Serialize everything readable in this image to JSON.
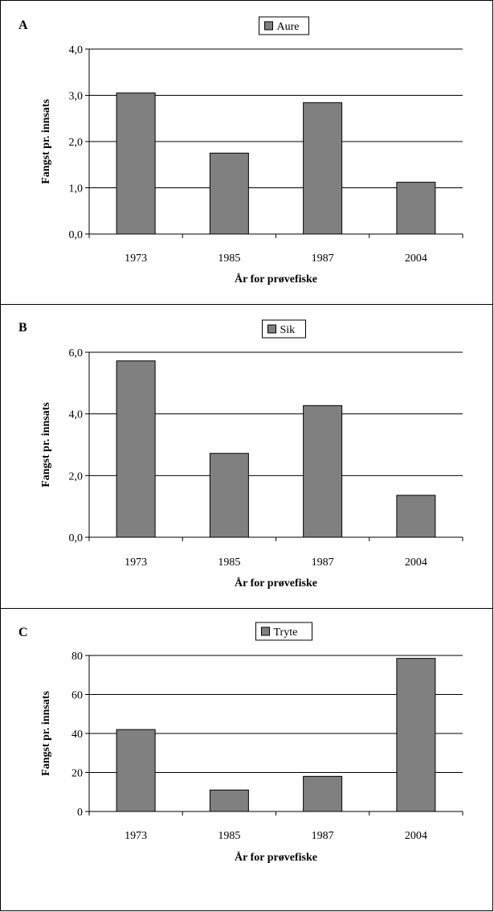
{
  "colors": {
    "bar_fill": "#808080",
    "bar_stroke": "#000000",
    "grid": "#000000",
    "background": "#ffffff"
  },
  "chart_data": [
    {
      "panel": "A",
      "type": "bar",
      "legend": "Aure",
      "legend_position": "top-center",
      "categories": [
        "1973",
        "1985",
        "1987",
        "2004"
      ],
      "series": [
        {
          "name": "Aure",
          "values": [
            3.05,
            1.75,
            2.84,
            1.12
          ]
        }
      ],
      "ylim": [
        0,
        4
      ],
      "yticks": [
        0,
        1,
        2,
        3,
        4
      ],
      "ytick_labels": [
        "0,0",
        "1,0",
        "2,0",
        "3,0",
        "4,0"
      ],
      "xlabel": "År for prøvefiske",
      "ylabel": "Fangst pr. innsats",
      "grid": true
    },
    {
      "panel": "B",
      "type": "bar",
      "legend": "Sik",
      "legend_position": "top-center",
      "categories": [
        "1973",
        "1985",
        "1987",
        "2004"
      ],
      "series": [
        {
          "name": "Sik",
          "values": [
            5.72,
            2.72,
            4.27,
            1.36
          ]
        }
      ],
      "ylim": [
        0,
        6
      ],
      "yticks": [
        0,
        2,
        4,
        6
      ],
      "ytick_labels": [
        "0,0",
        "2,0",
        "4,0",
        "6,0"
      ],
      "xlabel": "År for prøvefiske",
      "ylabel": "Fangst pr. innsats",
      "grid": true
    },
    {
      "panel": "C",
      "type": "bar",
      "legend": "Tryte",
      "legend_position": "top-center",
      "categories": [
        "1973",
        "1985",
        "1987",
        "2004"
      ],
      "series": [
        {
          "name": "Tryte",
          "values": [
            42,
            11,
            18,
            78.5
          ]
        }
      ],
      "ylim": [
        0,
        80
      ],
      "yticks": [
        0,
        20,
        40,
        60,
        80
      ],
      "ytick_labels": [
        "0",
        "20",
        "40",
        "60",
        "80"
      ],
      "xlabel": "År for prøvefiske",
      "ylabel": "Fangst pr. innsats",
      "grid": true
    }
  ]
}
